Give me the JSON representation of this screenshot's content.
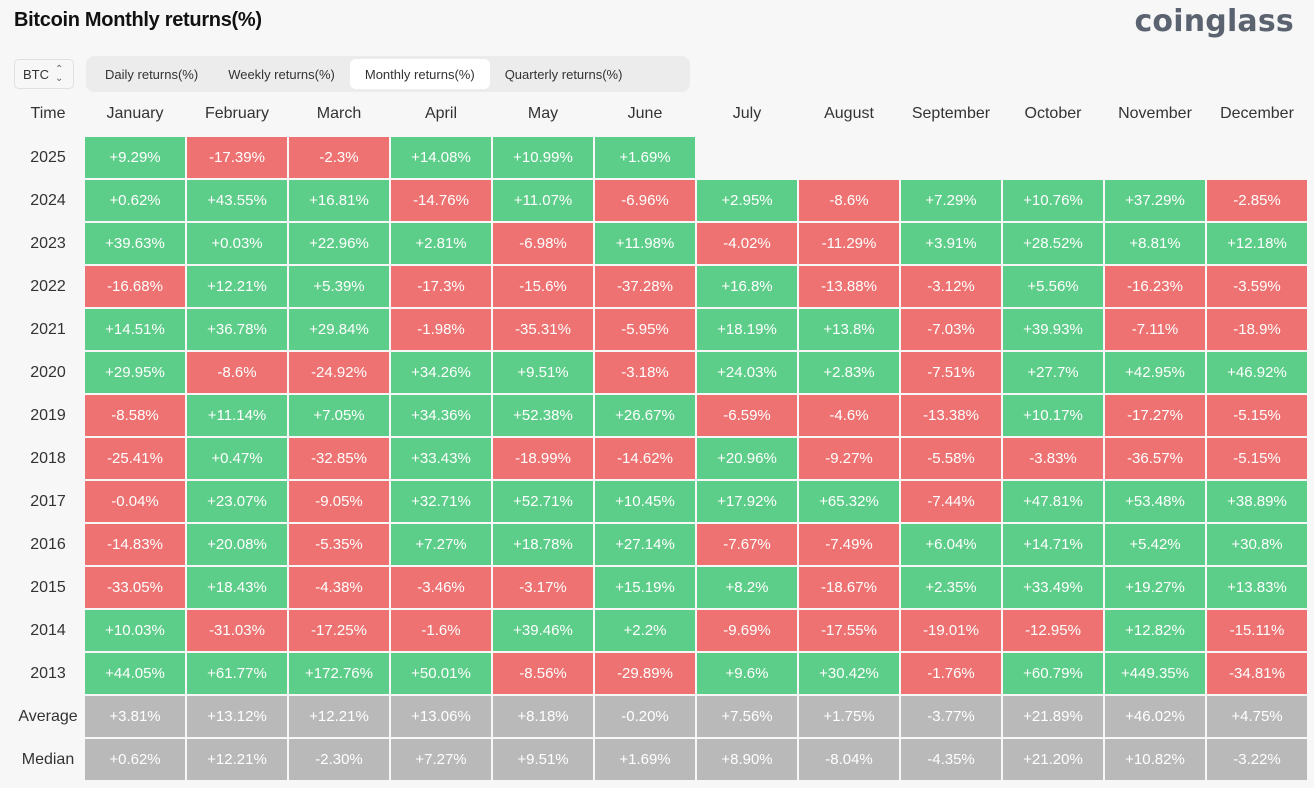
{
  "title": "Bitcoin Monthly returns(%)",
  "brand": "coinglass",
  "asset_select": {
    "value": "BTC"
  },
  "tabs": [
    {
      "label": "Daily returns(%)",
      "active": false
    },
    {
      "label": "Weekly returns(%)",
      "active": false
    },
    {
      "label": "Monthly returns(%)",
      "active": true
    },
    {
      "label": "Quarterly returns(%)",
      "active": false
    }
  ],
  "colors": {
    "positive": "#5dce89",
    "negative": "#ee7272",
    "summary": "#b9b9b9"
  },
  "chart_data": {
    "type": "heatmap",
    "row_header": "Time",
    "columns": [
      "January",
      "February",
      "March",
      "April",
      "May",
      "June",
      "July",
      "August",
      "September",
      "October",
      "November",
      "December"
    ],
    "rows": [
      {
        "label": "2025",
        "values": [
          "+9.29%",
          "-17.39%",
          "-2.3%",
          "+14.08%",
          "+10.99%",
          "+1.69%"
        ]
      },
      {
        "label": "2024",
        "values": [
          "+0.62%",
          "+43.55%",
          "+16.81%",
          "-14.76%",
          "+11.07%",
          "-6.96%",
          "+2.95%",
          "-8.6%",
          "+7.29%",
          "+10.76%",
          "+37.29%",
          "-2.85%"
        ]
      },
      {
        "label": "2023",
        "values": [
          "+39.63%",
          "+0.03%",
          "+22.96%",
          "+2.81%",
          "-6.98%",
          "+11.98%",
          "-4.02%",
          "-11.29%",
          "+3.91%",
          "+28.52%",
          "+8.81%",
          "+12.18%"
        ]
      },
      {
        "label": "2022",
        "values": [
          "-16.68%",
          "+12.21%",
          "+5.39%",
          "-17.3%",
          "-15.6%",
          "-37.28%",
          "+16.8%",
          "-13.88%",
          "-3.12%",
          "+5.56%",
          "-16.23%",
          "-3.59%"
        ]
      },
      {
        "label": "2021",
        "values": [
          "+14.51%",
          "+36.78%",
          "+29.84%",
          "-1.98%",
          "-35.31%",
          "-5.95%",
          "+18.19%",
          "+13.8%",
          "-7.03%",
          "+39.93%",
          "-7.11%",
          "-18.9%"
        ]
      },
      {
        "label": "2020",
        "values": [
          "+29.95%",
          "-8.6%",
          "-24.92%",
          "+34.26%",
          "+9.51%",
          "-3.18%",
          "+24.03%",
          "+2.83%",
          "-7.51%",
          "+27.7%",
          "+42.95%",
          "+46.92%"
        ]
      },
      {
        "label": "2019",
        "values": [
          "-8.58%",
          "+11.14%",
          "+7.05%",
          "+34.36%",
          "+52.38%",
          "+26.67%",
          "-6.59%",
          "-4.6%",
          "-13.38%",
          "+10.17%",
          "-17.27%",
          "-5.15%"
        ]
      },
      {
        "label": "2018",
        "values": [
          "-25.41%",
          "+0.47%",
          "-32.85%",
          "+33.43%",
          "-18.99%",
          "-14.62%",
          "+20.96%",
          "-9.27%",
          "-5.58%",
          "-3.83%",
          "-36.57%",
          "-5.15%"
        ]
      },
      {
        "label": "2017",
        "values": [
          "-0.04%",
          "+23.07%",
          "-9.05%",
          "+32.71%",
          "+52.71%",
          "+10.45%",
          "+17.92%",
          "+65.32%",
          "-7.44%",
          "+47.81%",
          "+53.48%",
          "+38.89%"
        ]
      },
      {
        "label": "2016",
        "values": [
          "-14.83%",
          "+20.08%",
          "-5.35%",
          "+7.27%",
          "+18.78%",
          "+27.14%",
          "-7.67%",
          "-7.49%",
          "+6.04%",
          "+14.71%",
          "+5.42%",
          "+30.8%"
        ]
      },
      {
        "label": "2015",
        "values": [
          "-33.05%",
          "+18.43%",
          "-4.38%",
          "-3.46%",
          "-3.17%",
          "+15.19%",
          "+8.2%",
          "-18.67%",
          "+2.35%",
          "+33.49%",
          "+19.27%",
          "+13.83%"
        ]
      },
      {
        "label": "2014",
        "values": [
          "+10.03%",
          "-31.03%",
          "-17.25%",
          "-1.6%",
          "+39.46%",
          "+2.2%",
          "-9.69%",
          "-17.55%",
          "-19.01%",
          "-12.95%",
          "+12.82%",
          "-15.11%"
        ]
      },
      {
        "label": "2013",
        "values": [
          "+44.05%",
          "+61.77%",
          "+172.76%",
          "+50.01%",
          "-8.56%",
          "-29.89%",
          "+9.6%",
          "+30.42%",
          "-1.76%",
          "+60.79%",
          "+449.35%",
          "-34.81%"
        ]
      }
    ],
    "summary_rows": [
      {
        "label": "Average",
        "values": [
          "+3.81%",
          "+13.12%",
          "+12.21%",
          "+13.06%",
          "+8.18%",
          "-0.20%",
          "+7.56%",
          "+1.75%",
          "-3.77%",
          "+21.89%",
          "+46.02%",
          "+4.75%"
        ]
      },
      {
        "label": "Median",
        "values": [
          "+0.62%",
          "+12.21%",
          "-2.30%",
          "+7.27%",
          "+9.51%",
          "+1.69%",
          "+8.90%",
          "-8.04%",
          "-4.35%",
          "+21.20%",
          "+10.82%",
          "-3.22%"
        ]
      }
    ]
  }
}
